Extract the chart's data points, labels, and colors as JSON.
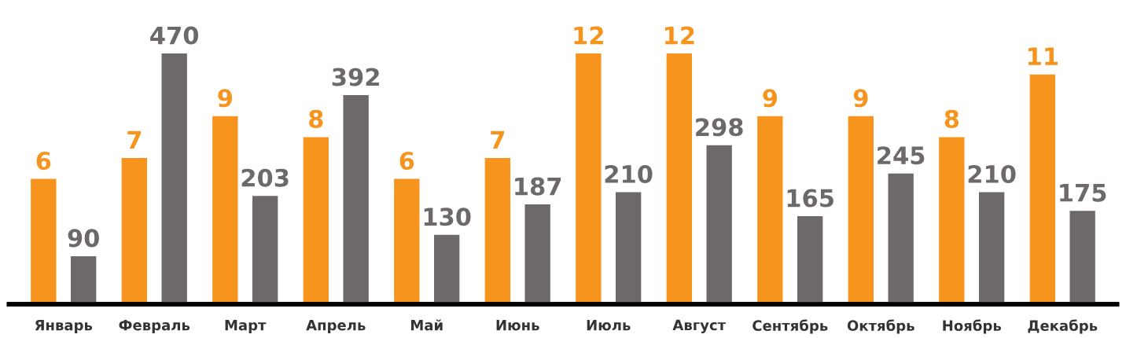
{
  "chart_data": {
    "type": "bar",
    "categories": [
      "Январь",
      "Февраль",
      "Март",
      "Апрель",
      "Май",
      "Июнь",
      "Июль",
      "Август",
      "Сентябрь",
      "Октябрь",
      "Ноябрь",
      "Декабрь"
    ],
    "series": [
      {
        "color": "#f7941d",
        "values": [
          6,
          7,
          9,
          8,
          6,
          7,
          12,
          12,
          9,
          9,
          8,
          11
        ]
      },
      {
        "color": "#6d6869",
        "axis": "y2",
        "values": [
          90,
          470,
          203,
          392,
          130,
          187,
          210,
          298,
          165,
          245,
          210,
          175
        ]
      }
    ],
    "data_labels": true,
    "tick_labels": "x",
    "grid": false,
    "legend": false
  }
}
